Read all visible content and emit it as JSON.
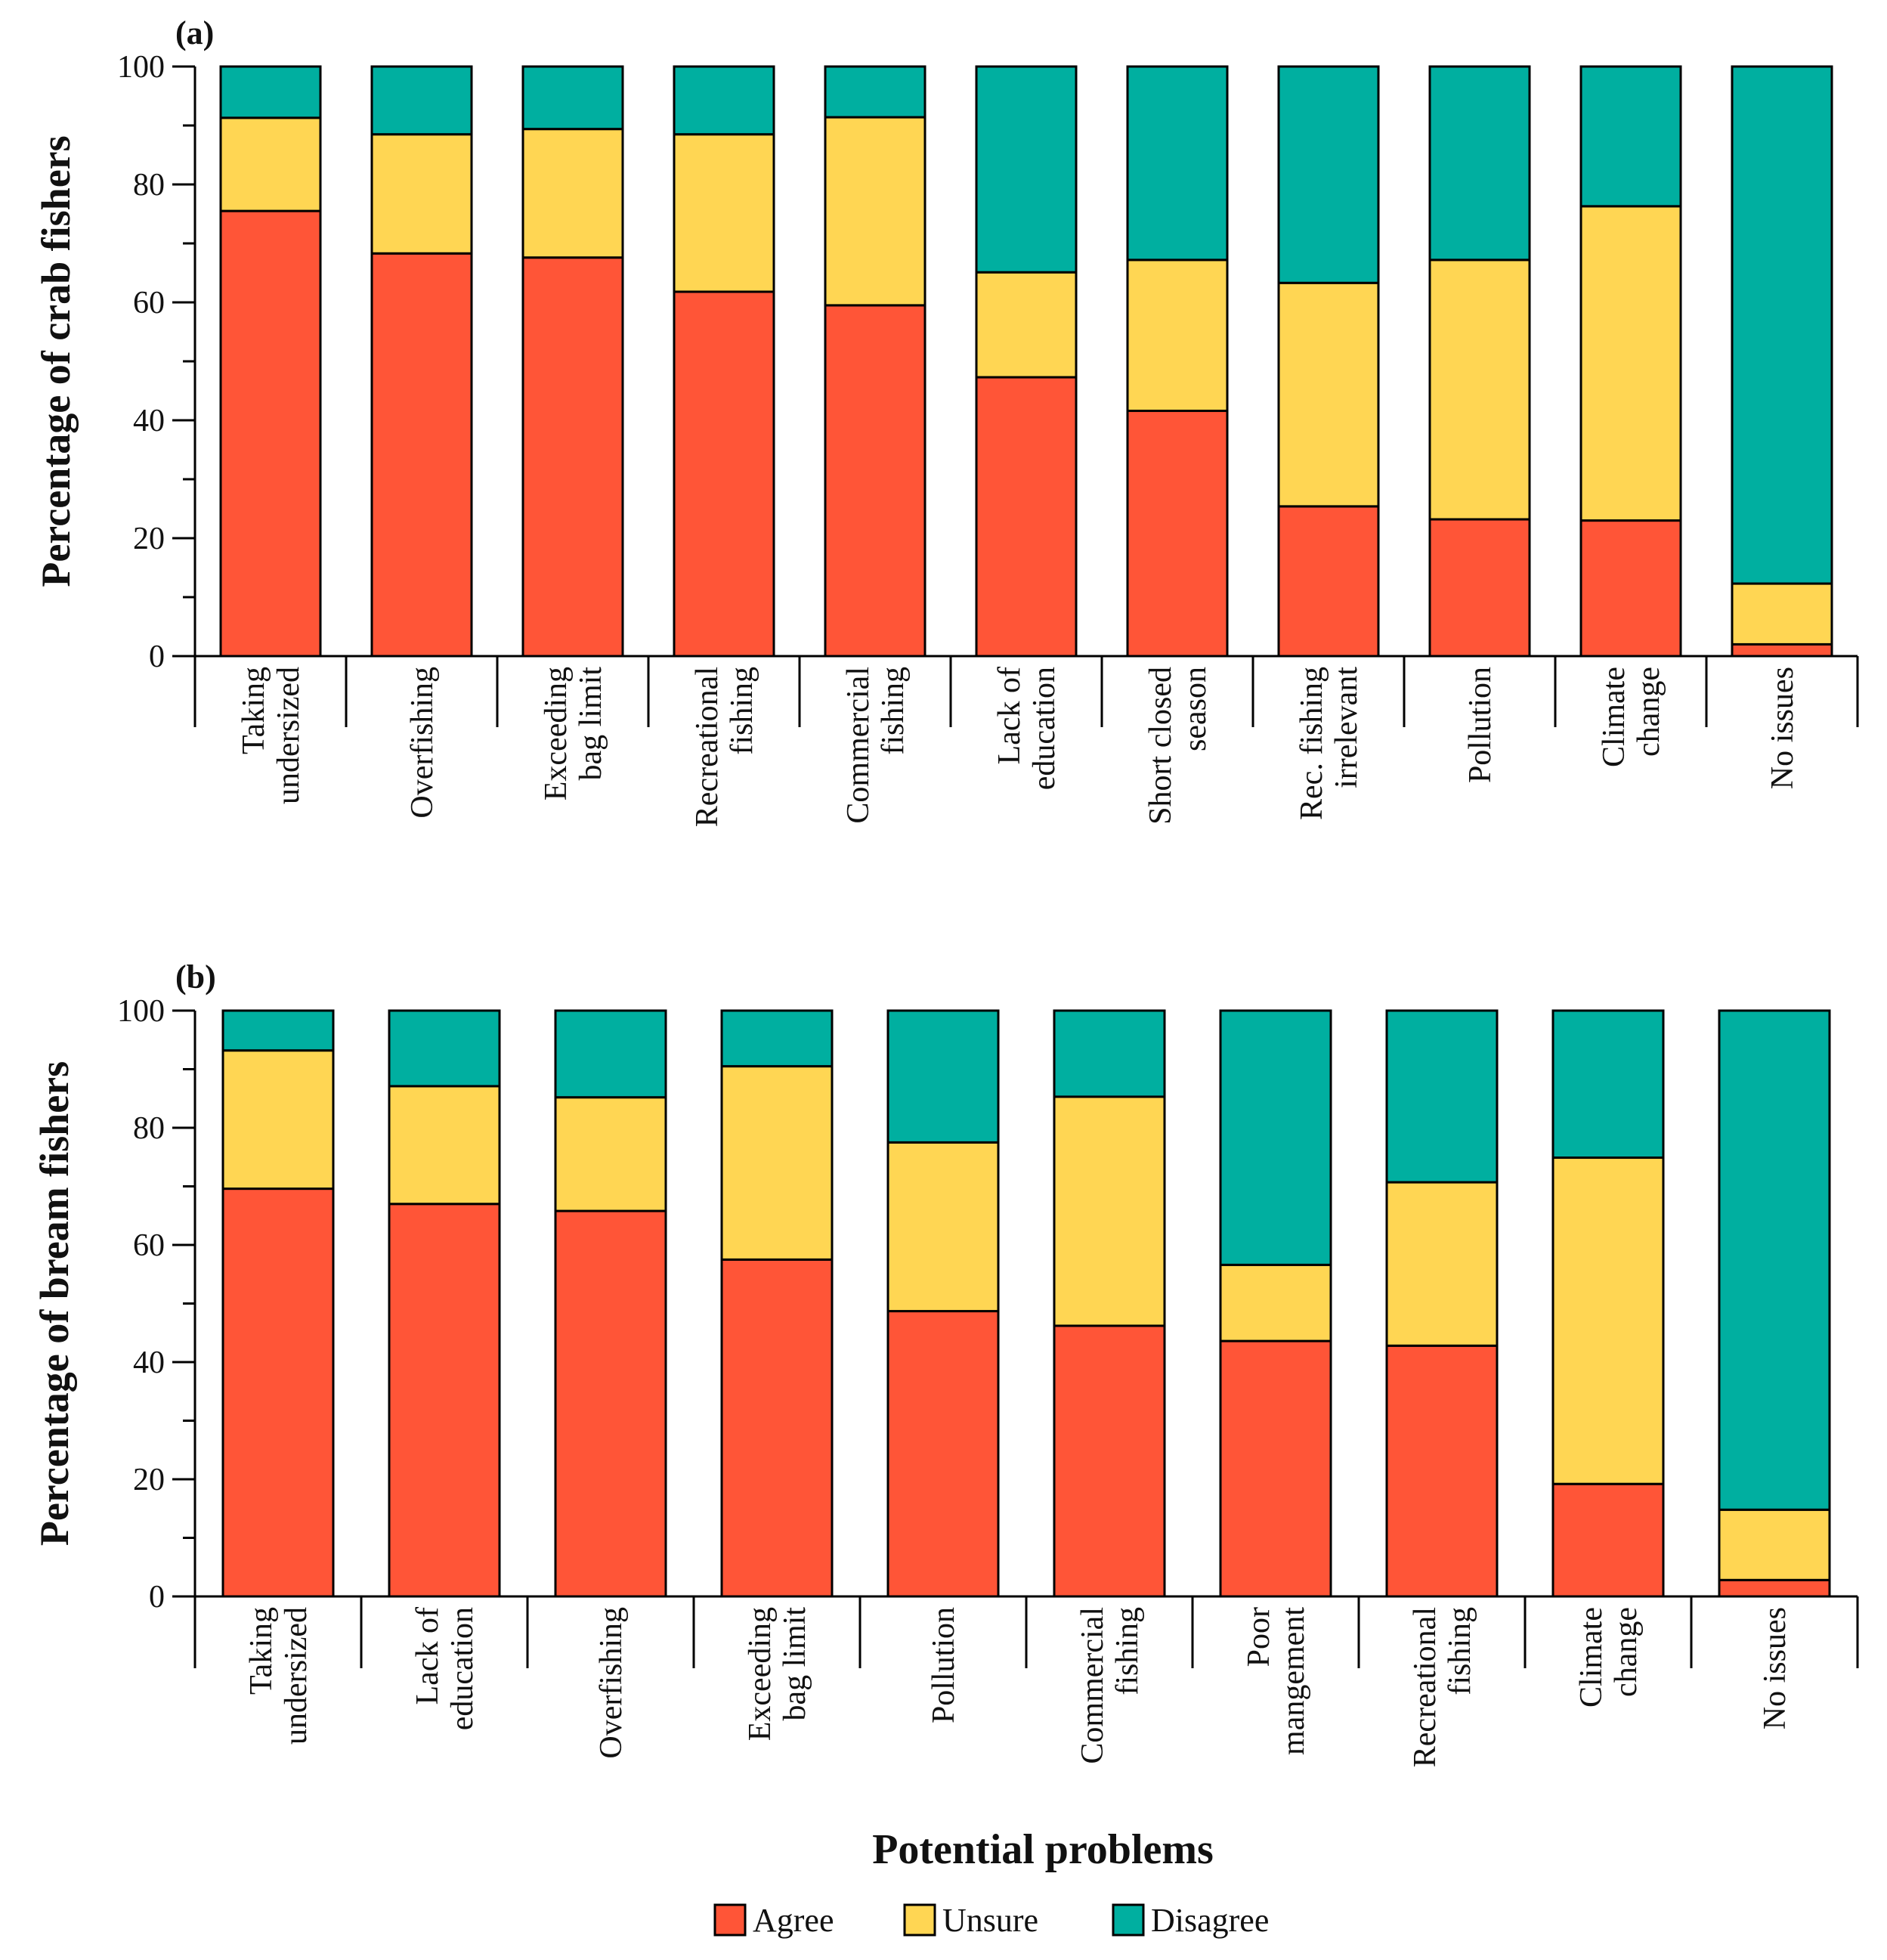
{
  "colors": {
    "agree": "#FF5537",
    "unsure": "#FFD653",
    "disagree": "#00AFA0"
  },
  "legend": [
    "Agree",
    "Unsure",
    "Disagree"
  ],
  "xlabel": "Potential problems",
  "chart_data": [
    {
      "type": "bar",
      "stacked": true,
      "panel_label": "(a)",
      "ylabel": "Percentage of crab fishers",
      "ylim": [
        0,
        100
      ],
      "yticks": [
        0,
        20,
        40,
        60,
        80,
        100
      ],
      "categories": [
        [
          "Taking",
          "undersized"
        ],
        [
          "Overfishing"
        ],
        [
          "Exceeding",
          "bag limit"
        ],
        [
          "Recreational",
          "fishing"
        ],
        [
          "Commercial",
          "fishing"
        ],
        [
          "Lack of",
          "education"
        ],
        [
          "Short closed",
          "season"
        ],
        [
          "Rec. fishing",
          "irrelevant"
        ],
        [
          "Pollution"
        ],
        [
          "Climate",
          "change"
        ],
        [
          "No issues"
        ]
      ],
      "series": [
        {
          "name": "Agree",
          "values": [
            75.5,
            68.3,
            67.6,
            61.8,
            59.5,
            47.3,
            41.6,
            25.4,
            23.2,
            23.0,
            2.0
          ]
        },
        {
          "name": "Unsure",
          "values": [
            15.8,
            20.2,
            21.8,
            26.7,
            31.9,
            17.8,
            25.6,
            37.9,
            44.0,
            53.3,
            10.3
          ]
        },
        {
          "name": "Disagree",
          "values": [
            8.7,
            11.5,
            10.6,
            11.5,
            8.6,
            34.9,
            32.8,
            36.7,
            32.8,
            23.7,
            87.7
          ]
        }
      ]
    },
    {
      "type": "bar",
      "stacked": true,
      "panel_label": "(b)",
      "ylabel": "Percentage of bream fishers",
      "ylim": [
        0,
        100
      ],
      "yticks": [
        0,
        20,
        40,
        60,
        80,
        100
      ],
      "categories": [
        [
          "Taking",
          "undersized"
        ],
        [
          "Lack of",
          "education"
        ],
        [
          "Overfishing"
        ],
        [
          "Exceeding",
          "bag limit"
        ],
        [
          "Pollution"
        ],
        [
          "Commercial",
          "fishing"
        ],
        [
          "Poor",
          "mangement"
        ],
        [
          "Recreational",
          "fishing"
        ],
        [
          "Climate",
          "change"
        ],
        [
          "No issues"
        ]
      ],
      "series": [
        {
          "name": "Agree",
          "values": [
            69.6,
            67.0,
            65.8,
            57.5,
            48.7,
            46.2,
            43.6,
            42.8,
            19.2,
            2.8
          ]
        },
        {
          "name": "Unsure",
          "values": [
            23.6,
            20.1,
            19.4,
            33.0,
            28.8,
            39.1,
            13.0,
            27.9,
            55.7,
            12.0
          ]
        },
        {
          "name": "Disagree",
          "values": [
            6.8,
            12.9,
            14.8,
            9.5,
            22.5,
            14.7,
            43.4,
            29.3,
            25.1,
            85.2
          ]
        }
      ]
    }
  ]
}
